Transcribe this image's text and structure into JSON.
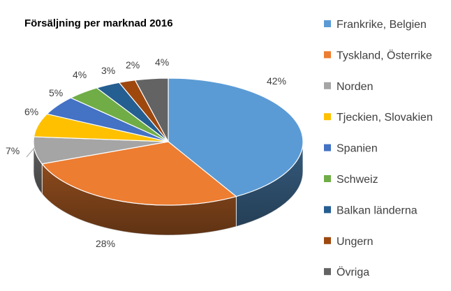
{
  "chart_data": {
    "type": "pie",
    "title": "Försäljning per marknad 2016",
    "slices": [
      {
        "name": "Frankrike, Belgien",
        "value": 42,
        "label": "42%",
        "color": "#5B9BD5"
      },
      {
        "name": "Tyskland, Österrike",
        "value": 28,
        "label": "28%",
        "color": "#ED7D31"
      },
      {
        "name": "Norden",
        "value": 7,
        "label": "7%",
        "color": "#A5A5A5"
      },
      {
        "name": "Tjeckien, Slovakien",
        "value": 6,
        "label": "6%",
        "color": "#FFC000"
      },
      {
        "name": "Spanien",
        "value": 5,
        "label": "5%",
        "color": "#4472C4"
      },
      {
        "name": "Schweiz",
        "value": 4,
        "label": "4%",
        "color": "#70AD47"
      },
      {
        "name": "Balkan länderna",
        "value": 3,
        "label": "3%",
        "color": "#255E91"
      },
      {
        "name": "Ungern",
        "value": 2,
        "label": "2%",
        "color": "#9E480E"
      },
      {
        "name": "Övriga",
        "value": 4,
        "label": "4%",
        "color": "#636363"
      }
    ],
    "legend_position": "right"
  }
}
